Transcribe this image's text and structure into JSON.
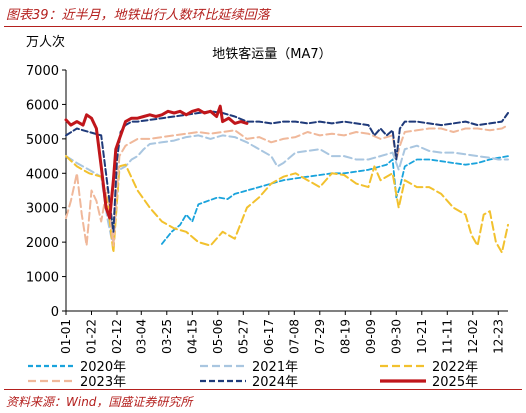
{
  "figure": {
    "title": "图表39：近半月，地铁出行人数环比延续回落",
    "source": "资料来源：Wind，国盛证券研究所"
  },
  "chart_data": {
    "type": "line",
    "title": "地铁客运量（MA7）",
    "ylabel": "万人次",
    "xlabel": "",
    "ylim": [
      0,
      7000
    ],
    "yticks": [
      "0",
      "1000",
      "2000",
      "3000",
      "4000",
      "5000",
      "6000",
      "7000"
    ],
    "x_domain": [
      1,
      365
    ],
    "xticks": [
      {
        "label": "01-01",
        "day": 1
      },
      {
        "label": "01-22",
        "day": 22
      },
      {
        "label": "02-12",
        "day": 43
      },
      {
        "label": "03-04",
        "day": 63
      },
      {
        "label": "03-25",
        "day": 84
      },
      {
        "label": "04-15",
        "day": 105
      },
      {
        "label": "05-06",
        "day": 126
      },
      {
        "label": "05-27",
        "day": 147
      },
      {
        "label": "06-17",
        "day": 168
      },
      {
        "label": "07-08",
        "day": 189
      },
      {
        "label": "07-29",
        "day": 210
      },
      {
        "label": "08-19",
        "day": 231
      },
      {
        "label": "09-09",
        "day": 252
      },
      {
        "label": "09-30",
        "day": 273
      },
      {
        "label": "10-21",
        "day": 294
      },
      {
        "label": "11-11",
        "day": 315
      },
      {
        "label": "12-02",
        "day": 336
      },
      {
        "label": "12-23",
        "day": 357
      }
    ],
    "legend_position": "bottom",
    "grid": false,
    "series": [
      {
        "name": "2020年",
        "color": "#1aa3dc",
        "dash": "5,3",
        "width": 1.8,
        "x": [
          80,
          88,
          95,
          100,
          105,
          110,
          118,
          126,
          134,
          140,
          150,
          160,
          170,
          180,
          190,
          200,
          210,
          220,
          230,
          240,
          250,
          260,
          265,
          270,
          273,
          276,
          280,
          290,
          300,
          310,
          320,
          330,
          340,
          350,
          357,
          365
        ],
        "y": [
          1950,
          2300,
          2500,
          2800,
          2600,
          3100,
          3200,
          3300,
          3250,
          3400,
          3500,
          3600,
          3700,
          3800,
          3850,
          3900,
          3950,
          4000,
          4000,
          4050,
          4100,
          4200,
          4250,
          4400,
          3300,
          3600,
          4200,
          4400,
          4400,
          4350,
          4300,
          4250,
          4300,
          4400,
          4450,
          4500
        ]
      },
      {
        "name": "2021年",
        "color": "#a9c6e0",
        "dash": "8,4",
        "width": 2,
        "x": [
          1,
          10,
          20,
          30,
          35,
          40,
          45,
          50,
          55,
          60,
          65,
          70,
          80,
          90,
          100,
          110,
          120,
          130,
          140,
          150,
          160,
          170,
          175,
          180,
          190,
          200,
          210,
          220,
          230,
          240,
          250,
          260,
          270,
          275,
          280,
          290,
          300,
          310,
          320,
          330,
          340,
          350,
          357,
          365
        ],
        "y": [
          4500,
          4300,
          4100,
          3900,
          2700,
          1850,
          4100,
          4200,
          4400,
          4500,
          4700,
          4850,
          4900,
          4950,
          5050,
          5100,
          5000,
          5100,
          5050,
          4900,
          4700,
          4500,
          4200,
          4300,
          4600,
          4650,
          4700,
          4500,
          4500,
          4400,
          4400,
          4500,
          4600,
          4100,
          4700,
          4800,
          4650,
          4600,
          4600,
          4550,
          4500,
          4450,
          4400,
          4400
        ]
      },
      {
        "name": "2022年",
        "color": "#f2c12e",
        "dash": "8,4",
        "width": 2,
        "x": [
          1,
          10,
          20,
          30,
          35,
          40,
          45,
          50,
          60,
          70,
          80,
          90,
          100,
          110,
          120,
          130,
          140,
          150,
          160,
          170,
          180,
          190,
          200,
          210,
          220,
          230,
          240,
          250,
          255,
          260,
          270,
          275,
          280,
          290,
          300,
          310,
          320,
          330,
          335,
          340,
          345,
          350,
          355,
          360,
          365
        ],
        "y": [
          4500,
          4200,
          4000,
          3900,
          3200,
          1700,
          4200,
          4250,
          3500,
          3000,
          2600,
          2400,
          2300,
          2000,
          1900,
          2300,
          2100,
          3000,
          3300,
          3700,
          3900,
          4000,
          3800,
          3600,
          4000,
          3950,
          3700,
          3600,
          4200,
          3800,
          4000,
          3000,
          3800,
          3600,
          3600,
          3400,
          3000,
          2800,
          2200,
          1900,
          2800,
          2900,
          2000,
          1700,
          2500
        ]
      },
      {
        "name": "2023年",
        "color": "#f0b89a",
        "dash": "8,4",
        "width": 2,
        "x": [
          1,
          5,
          10,
          14,
          18,
          22,
          26,
          30,
          35,
          40,
          45,
          50,
          60,
          70,
          80,
          90,
          100,
          110,
          120,
          130,
          140,
          150,
          160,
          170,
          180,
          190,
          200,
          210,
          220,
          230,
          240,
          250,
          260,
          270,
          273,
          276,
          280,
          290,
          300,
          310,
          320,
          330,
          340,
          350,
          360,
          365
        ],
        "y": [
          2700,
          3200,
          4000,
          2800,
          1900,
          3500,
          3200,
          2600,
          3600,
          1900,
          4500,
          4800,
          5000,
          5000,
          5050,
          5100,
          5150,
          5200,
          5150,
          5200,
          5250,
          5000,
          5050,
          4900,
          5000,
          5050,
          5200,
          5100,
          5150,
          5100,
          5200,
          5150,
          5000,
          5100,
          4400,
          4800,
          5200,
          5250,
          5300,
          5300,
          5200,
          5300,
          5300,
          5250,
          5300,
          5400
        ]
      },
      {
        "name": "2024年",
        "color": "#1f3a7a",
        "dash": "6,3",
        "width": 2,
        "x": [
          1,
          10,
          20,
          30,
          35,
          40,
          43,
          46,
          50,
          55,
          60,
          70,
          80,
          90,
          100,
          110,
          120,
          130,
          140,
          150,
          160,
          170,
          180,
          190,
          200,
          210,
          220,
          230,
          240,
          250,
          255,
          260,
          265,
          270,
          273,
          276,
          280,
          290,
          300,
          310,
          320,
          330,
          340,
          350,
          360,
          365
        ],
        "y": [
          5100,
          5300,
          5200,
          5100,
          3700,
          2300,
          4400,
          5200,
          5400,
          5500,
          5500,
          5550,
          5600,
          5650,
          5700,
          5750,
          5800,
          5750,
          5650,
          5500,
          5500,
          5450,
          5500,
          5500,
          5450,
          5500,
          5450,
          5500,
          5450,
          5400,
          5100,
          5300,
          5100,
          5250,
          4400,
          5300,
          5500,
          5500,
          5450,
          5400,
          5450,
          5500,
          5400,
          5450,
          5500,
          5750
        ]
      },
      {
        "name": "2025年",
        "color": "#c0161b",
        "dash": "",
        "width": 3,
        "x": [
          1,
          5,
          10,
          15,
          18,
          22,
          26,
          30,
          34,
          37,
          40,
          42,
          45,
          50,
          55,
          60,
          65,
          70,
          75,
          80,
          85,
          90,
          95,
          100,
          105,
          110,
          115,
          120,
          125,
          128,
          130,
          135,
          140,
          145,
          150
        ],
        "y": [
          5550,
          5400,
          5500,
          5400,
          5700,
          5600,
          5300,
          4200,
          3000,
          2700,
          3800,
          4700,
          5000,
          5500,
          5600,
          5600,
          5650,
          5700,
          5650,
          5700,
          5800,
          5750,
          5800,
          5700,
          5800,
          5850,
          5750,
          5800,
          5650,
          5950,
          5500,
          5600,
          5450,
          5500,
          5450
        ]
      }
    ]
  }
}
